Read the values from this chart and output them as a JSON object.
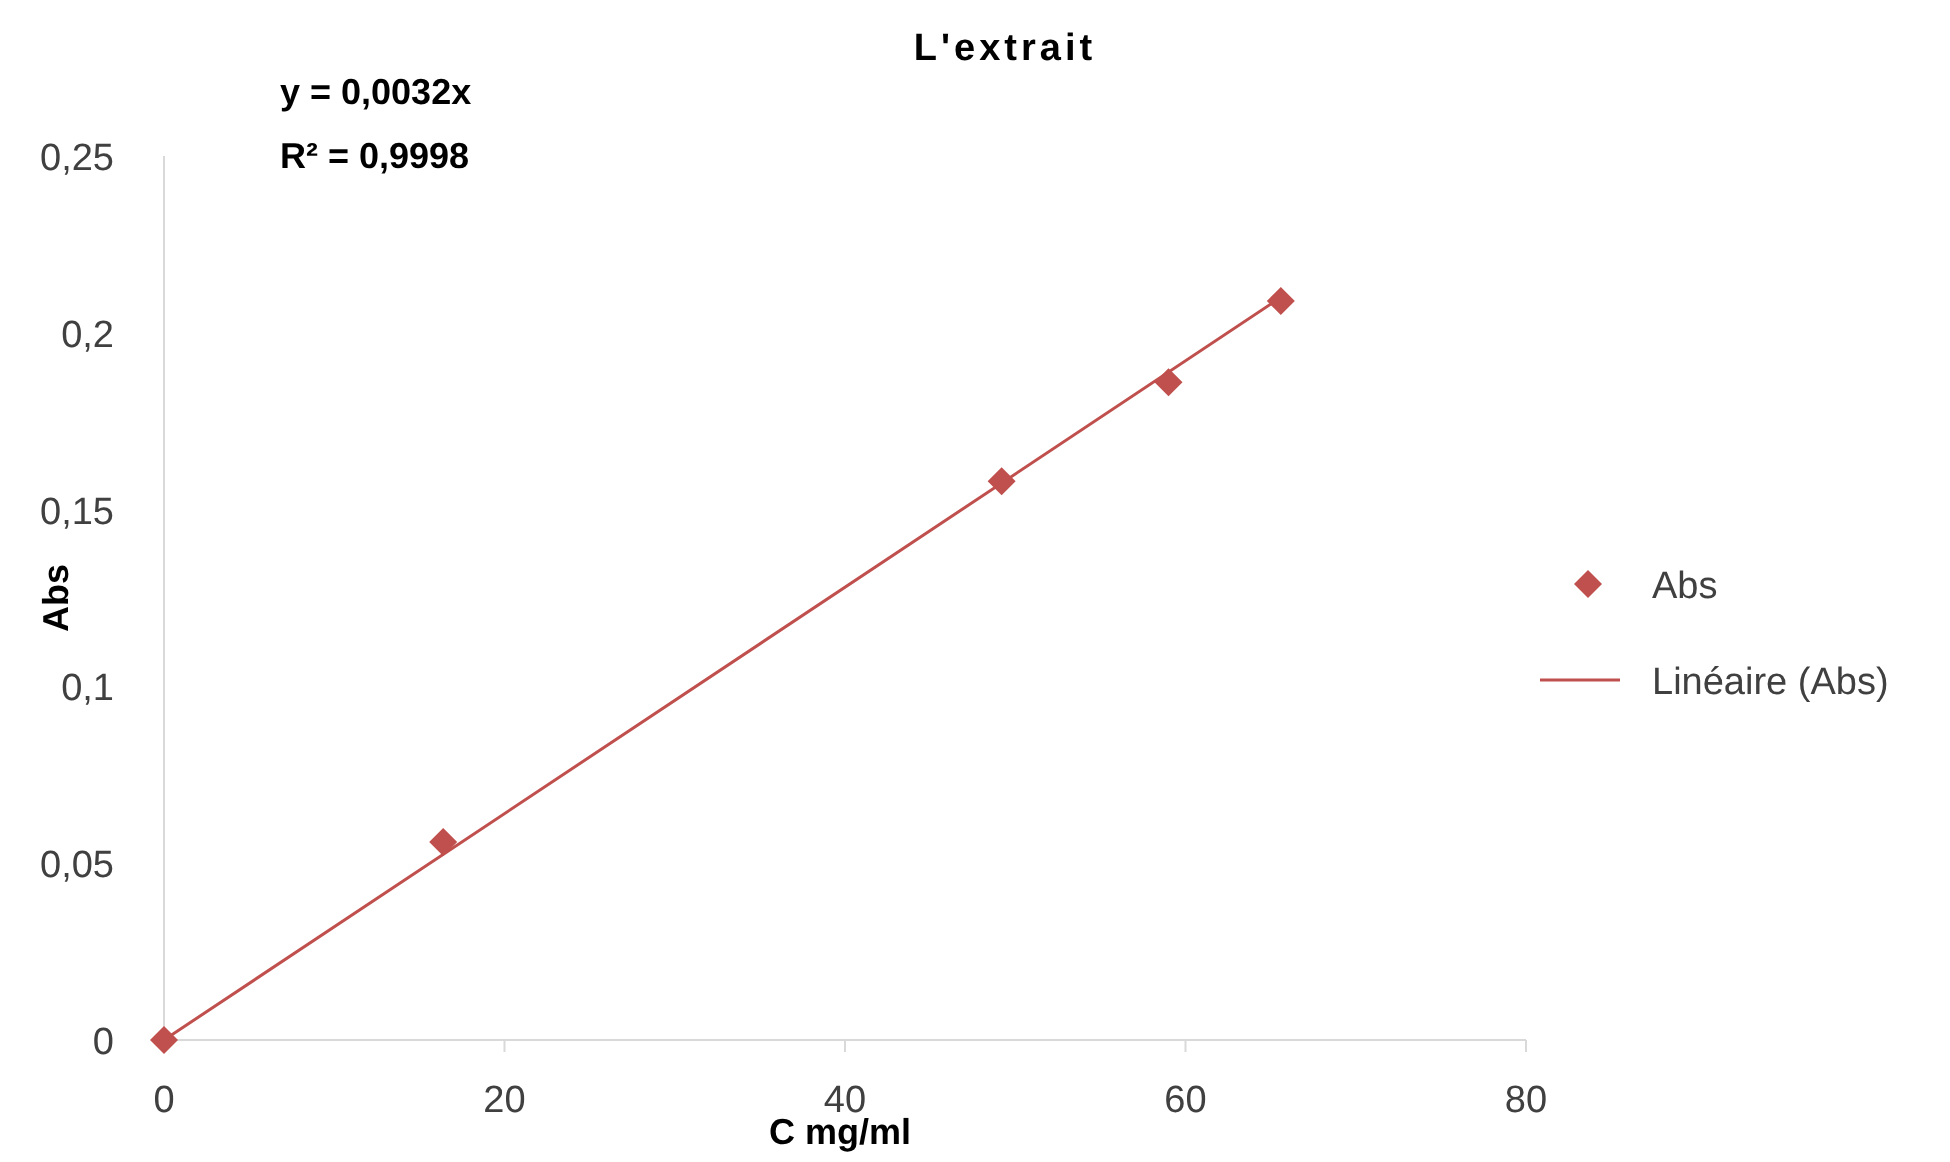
{
  "chart_data": {
    "type": "scatter",
    "title": "L'extrait",
    "xlabel": "C mg/ml",
    "ylabel": "Abs",
    "annotations": [
      "y = 0,0032x",
      "R² = 0,9998"
    ],
    "xlim": [
      0,
      80
    ],
    "xticks": [
      0,
      20,
      40,
      60,
      80
    ],
    "ylim": [
      0,
      0.25
    ],
    "yticks": [
      0,
      {
        "value": 0.05,
        "label": "0,05"
      },
      {
        "value": 0.1,
        "label": "0,1"
      },
      {
        "value": 0.15,
        "label": "0,15"
      },
      {
        "value": 0.2,
        "label": "0,2"
      },
      {
        "value": 0.25,
        "label": "0,25"
      }
    ],
    "legend": "right",
    "series": [
      {
        "name": "Abs",
        "color": "#c0504d",
        "marker": "diamond",
        "x": [
          0,
          16.4,
          49.2,
          59.0,
          65.6
        ],
        "values": [
          0,
          0.056,
          0.158,
          0.186,
          0.209
        ]
      },
      {
        "name": "Linéaire (Abs)",
        "type": "line",
        "color": "#c0504d",
        "line_style": "solid",
        "x": [
          0,
          65.6
        ],
        "values": [
          0,
          0.21
        ]
      }
    ]
  }
}
